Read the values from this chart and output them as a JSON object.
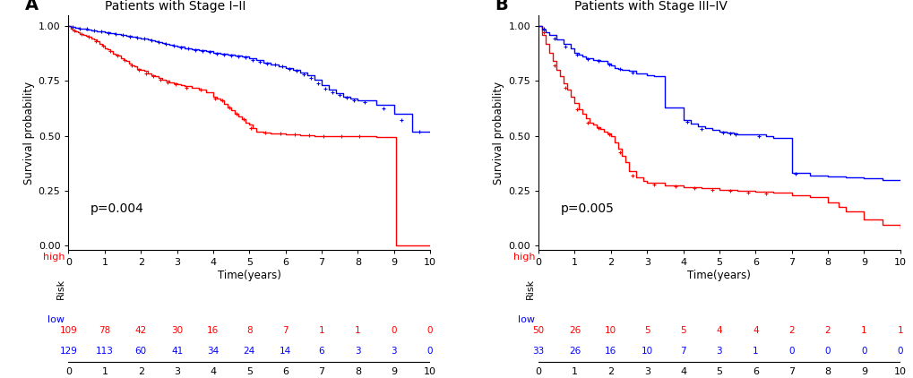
{
  "panel_A": {
    "title": "Patients with Stage I–II",
    "pvalue": "p=0.004",
    "ylabel": "Survival probability",
    "xlabel": "Time(years)",
    "xlim": [
      0,
      10
    ],
    "ylim": [
      -0.02,
      1.05
    ],
    "yticks": [
      0.0,
      0.25,
      0.5,
      0.75,
      1.0
    ],
    "xticks": [
      0,
      1,
      2,
      3,
      4,
      5,
      6,
      7,
      8,
      9,
      10
    ],
    "high_color": "#FF0000",
    "low_color": "#0000FF",
    "high_curve": {
      "times": [
        0,
        0.05,
        0.12,
        0.18,
        0.25,
        0.32,
        0.4,
        0.48,
        0.55,
        0.62,
        0.7,
        0.78,
        0.85,
        0.92,
        1.0,
        1.08,
        1.15,
        1.22,
        1.3,
        1.38,
        1.45,
        1.52,
        1.6,
        1.68,
        1.75,
        1.82,
        1.9,
        2.0,
        2.1,
        2.2,
        2.3,
        2.4,
        2.5,
        2.6,
        2.7,
        2.8,
        2.9,
        3.0,
        3.1,
        3.2,
        3.4,
        3.6,
        3.8,
        4.0,
        4.1,
        4.2,
        4.3,
        4.4,
        4.5,
        4.6,
        4.7,
        4.8,
        4.9,
        5.0,
        5.1,
        5.2,
        5.4,
        5.6,
        5.8,
        6.0,
        6.2,
        6.4,
        6.6,
        6.8,
        7.0,
        7.5,
        8.0,
        8.5,
        9.0,
        9.05,
        9.5,
        10.0
      ],
      "surv": [
        1.0,
        0.99,
        0.98,
        0.975,
        0.97,
        0.965,
        0.96,
        0.955,
        0.95,
        0.945,
        0.94,
        0.93,
        0.92,
        0.91,
        0.9,
        0.895,
        0.885,
        0.875,
        0.87,
        0.865,
        0.855,
        0.845,
        0.84,
        0.83,
        0.82,
        0.815,
        0.805,
        0.8,
        0.795,
        0.785,
        0.775,
        0.77,
        0.765,
        0.755,
        0.75,
        0.745,
        0.74,
        0.735,
        0.73,
        0.725,
        0.72,
        0.71,
        0.7,
        0.68,
        0.67,
        0.66,
        0.645,
        0.63,
        0.615,
        0.6,
        0.59,
        0.575,
        0.56,
        0.55,
        0.535,
        0.52,
        0.515,
        0.512,
        0.51,
        0.508,
        0.506,
        0.504,
        0.502,
        0.5,
        0.499,
        0.498,
        0.497,
        0.496,
        0.495,
        0.0,
        0.0,
        0.0
      ],
      "censor_times": [
        0.15,
        0.35,
        0.55,
        0.75,
        0.95,
        1.15,
        1.35,
        1.55,
        1.75,
        1.95,
        2.15,
        2.35,
        2.55,
        2.75,
        2.95,
        3.25,
        3.65,
        4.05,
        4.25,
        4.45,
        4.65,
        4.85,
        5.05,
        5.45,
        5.85,
        6.25,
        6.65,
        7.05,
        7.55,
        8.05
      ],
      "censor_surv": [
        0.98,
        0.965,
        0.95,
        0.93,
        0.91,
        0.885,
        0.865,
        0.845,
        0.82,
        0.8,
        0.785,
        0.77,
        0.755,
        0.745,
        0.735,
        0.72,
        0.71,
        0.67,
        0.66,
        0.63,
        0.6,
        0.575,
        0.535,
        0.515,
        0.51,
        0.506,
        0.502,
        0.499,
        0.498,
        0.497
      ]
    },
    "low_curve": {
      "times": [
        0,
        0.05,
        0.1,
        0.18,
        0.25,
        0.32,
        0.4,
        0.48,
        0.55,
        0.62,
        0.7,
        0.78,
        0.85,
        0.92,
        1.0,
        1.08,
        1.15,
        1.22,
        1.3,
        1.38,
        1.45,
        1.52,
        1.6,
        1.68,
        1.75,
        1.82,
        1.9,
        2.0,
        2.1,
        2.2,
        2.3,
        2.4,
        2.5,
        2.6,
        2.7,
        2.8,
        2.9,
        3.0,
        3.2,
        3.4,
        3.6,
        3.8,
        4.0,
        4.2,
        4.4,
        4.6,
        4.8,
        5.0,
        5.2,
        5.4,
        5.6,
        5.8,
        6.0,
        6.2,
        6.4,
        6.6,
        6.8,
        7.0,
        7.2,
        7.4,
        7.6,
        7.8,
        8.0,
        8.5,
        9.0,
        9.5,
        10.0
      ],
      "surv": [
        1.0,
        0.998,
        0.996,
        0.994,
        0.992,
        0.99,
        0.988,
        0.986,
        0.984,
        0.982,
        0.98,
        0.978,
        0.976,
        0.974,
        0.972,
        0.97,
        0.968,
        0.966,
        0.964,
        0.962,
        0.96,
        0.958,
        0.956,
        0.954,
        0.952,
        0.95,
        0.948,
        0.945,
        0.942,
        0.938,
        0.934,
        0.93,
        0.926,
        0.922,
        0.918,
        0.914,
        0.91,
        0.905,
        0.9,
        0.895,
        0.89,
        0.885,
        0.88,
        0.875,
        0.87,
        0.865,
        0.86,
        0.855,
        0.845,
        0.835,
        0.825,
        0.815,
        0.81,
        0.8,
        0.79,
        0.775,
        0.755,
        0.73,
        0.71,
        0.695,
        0.68,
        0.67,
        0.66,
        0.64,
        0.6,
        0.52,
        0.52
      ],
      "censor_times": [
        0.1,
        0.3,
        0.5,
        0.7,
        0.9,
        1.1,
        1.3,
        1.5,
        1.7,
        1.9,
        2.1,
        2.3,
        2.5,
        2.7,
        2.9,
        3.1,
        3.3,
        3.5,
        3.7,
        3.9,
        4.1,
        4.3,
        4.5,
        4.7,
        4.9,
        5.1,
        5.3,
        5.5,
        5.7,
        5.9,
        6.1,
        6.3,
        6.5,
        6.7,
        6.9,
        7.1,
        7.3,
        7.5,
        7.7,
        7.9,
        8.2,
        8.7,
        9.2,
        9.7
      ],
      "censor_surv": [
        0.996,
        0.99,
        0.988,
        0.982,
        0.976,
        0.968,
        0.962,
        0.958,
        0.952,
        0.948,
        0.942,
        0.934,
        0.926,
        0.918,
        0.91,
        0.902,
        0.897,
        0.892,
        0.887,
        0.882,
        0.875,
        0.87,
        0.865,
        0.862,
        0.856,
        0.845,
        0.838,
        0.83,
        0.823,
        0.816,
        0.805,
        0.795,
        0.782,
        0.765,
        0.74,
        0.715,
        0.698,
        0.685,
        0.675,
        0.663,
        0.652,
        0.626,
        0.57,
        0.52
      ]
    },
    "risk_table": {
      "times": [
        0,
        1,
        2,
        3,
        4,
        5,
        6,
        7,
        8,
        9,
        10
      ],
      "high": [
        109,
        78,
        42,
        30,
        16,
        8,
        7,
        1,
        1,
        0,
        0
      ],
      "low": [
        129,
        113,
        60,
        41,
        34,
        24,
        14,
        6,
        3,
        3,
        0
      ]
    }
  },
  "panel_B": {
    "title": "Patients with Stage III–IV",
    "pvalue": "p=0.005",
    "ylabel": "Survival probability",
    "xlabel": "Time(years)",
    "xlim": [
      0,
      10
    ],
    "ylim": [
      -0.02,
      1.05
    ],
    "yticks": [
      0.0,
      0.25,
      0.5,
      0.75,
      1.0
    ],
    "xticks": [
      0,
      1,
      2,
      3,
      4,
      5,
      6,
      7,
      8,
      9,
      10
    ],
    "high_color": "#FF0000",
    "low_color": "#0000FF",
    "high_curve": {
      "times": [
        0,
        0.1,
        0.2,
        0.3,
        0.4,
        0.5,
        0.6,
        0.7,
        0.8,
        0.9,
        1.0,
        1.1,
        1.2,
        1.3,
        1.4,
        1.5,
        1.6,
        1.7,
        1.8,
        1.9,
        2.0,
        2.1,
        2.2,
        2.3,
        2.4,
        2.5,
        2.7,
        2.9,
        3.0,
        3.5,
        4.0,
        4.5,
        5.0,
        5.5,
        6.0,
        6.5,
        7.0,
        7.5,
        8.0,
        8.3,
        8.5,
        9.0,
        9.5,
        10.0
      ],
      "surv": [
        1.0,
        0.96,
        0.92,
        0.88,
        0.84,
        0.8,
        0.77,
        0.74,
        0.71,
        0.68,
        0.65,
        0.62,
        0.6,
        0.58,
        0.56,
        0.55,
        0.54,
        0.53,
        0.52,
        0.51,
        0.5,
        0.47,
        0.44,
        0.41,
        0.38,
        0.34,
        0.31,
        0.295,
        0.285,
        0.275,
        0.265,
        0.26,
        0.255,
        0.25,
        0.245,
        0.24,
        0.23,
        0.22,
        0.195,
        0.175,
        0.155,
        0.12,
        0.095,
        0.08
      ],
      "censor_times": [
        0.15,
        0.45,
        0.75,
        1.05,
        1.35,
        1.65,
        1.95,
        2.25,
        2.6,
        3.2,
        3.8,
        4.3,
        4.8,
        5.3,
        5.8,
        6.3
      ],
      "censor_surv": [
        0.97,
        0.82,
        0.72,
        0.62,
        0.56,
        0.535,
        0.505,
        0.425,
        0.32,
        0.279,
        0.268,
        0.261,
        0.253,
        0.248,
        0.243,
        0.238
      ]
    },
    "low_curve": {
      "times": [
        0,
        0.1,
        0.2,
        0.3,
        0.5,
        0.7,
        0.9,
        1.0,
        1.1,
        1.2,
        1.3,
        1.5,
        1.7,
        1.9,
        2.0,
        2.1,
        2.2,
        2.3,
        2.5,
        2.7,
        3.0,
        3.2,
        3.5,
        4.0,
        4.2,
        4.4,
        4.6,
        4.8,
        5.0,
        5.2,
        5.4,
        5.5,
        6.0,
        6.3,
        6.5,
        7.0,
        7.5,
        8.0,
        8.5,
        9.0,
        9.5,
        10.0
      ],
      "surv": [
        1.0,
        0.985,
        0.97,
        0.96,
        0.94,
        0.92,
        0.9,
        0.88,
        0.87,
        0.86,
        0.855,
        0.845,
        0.84,
        0.83,
        0.82,
        0.81,
        0.805,
        0.8,
        0.795,
        0.785,
        0.775,
        0.77,
        0.63,
        0.57,
        0.555,
        0.545,
        0.535,
        0.525,
        0.52,
        0.516,
        0.512,
        0.508,
        0.505,
        0.498,
        0.49,
        0.33,
        0.32,
        0.315,
        0.31,
        0.305,
        0.3,
        0.3
      ],
      "censor_times": [
        0.15,
        0.45,
        0.75,
        1.05,
        1.35,
        1.65,
        1.95,
        2.25,
        2.6,
        4.1,
        4.5,
        5.1,
        5.3,
        5.45,
        6.1,
        7.1
      ],
      "censor_surv": [
        0.988,
        0.942,
        0.905,
        0.87,
        0.85,
        0.842,
        0.825,
        0.803,
        0.788,
        0.562,
        0.53,
        0.514,
        0.51,
        0.508,
        0.497,
        0.325
      ]
    },
    "risk_table": {
      "times": [
        0,
        1,
        2,
        3,
        4,
        5,
        6,
        7,
        8,
        9,
        10
      ],
      "high": [
        50,
        26,
        10,
        5,
        5,
        4,
        4,
        2,
        2,
        1,
        1
      ],
      "low": [
        33,
        26,
        16,
        10,
        7,
        3,
        1,
        0,
        0,
        0,
        0
      ]
    }
  },
  "legend_label_risk": "Risk",
  "legend_label_high": "high",
  "legend_label_low": "low",
  "risk_label": "Risk",
  "high_label": "high",
  "low_label": "low",
  "label_A": "A",
  "label_B": "B",
  "bg_color": "#FFFFFF"
}
